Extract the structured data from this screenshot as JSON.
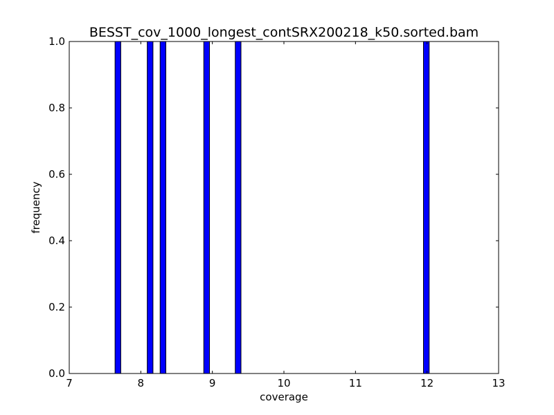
{
  "chart_data": {
    "type": "bar",
    "title": "BESST_cov_1000_longest_contSRX200218_k50.sorted.bam",
    "xlabel": "coverage",
    "ylabel": "frequency",
    "xlim": [
      7,
      13
    ],
    "ylim": [
      0,
      1
    ],
    "xticks": [
      "7",
      "8",
      "9",
      "10",
      "11",
      "12",
      "13"
    ],
    "yticks": [
      "0.0",
      "0.2",
      "0.4",
      "0.6",
      "0.8",
      "1.0"
    ],
    "bar_color": "#0000ff",
    "grid": false,
    "bars": [
      {
        "x_start": 7.64,
        "x_end": 7.72,
        "value": 1.0
      },
      {
        "x_start": 8.09,
        "x_end": 8.17,
        "value": 1.0
      },
      {
        "x_start": 8.27,
        "x_end": 8.35,
        "value": 1.0
      },
      {
        "x_start": 8.88,
        "x_end": 8.96,
        "value": 1.0
      },
      {
        "x_start": 9.32,
        "x_end": 9.4,
        "value": 1.0
      },
      {
        "x_start": 11.95,
        "x_end": 12.03,
        "value": 1.0
      }
    ]
  }
}
